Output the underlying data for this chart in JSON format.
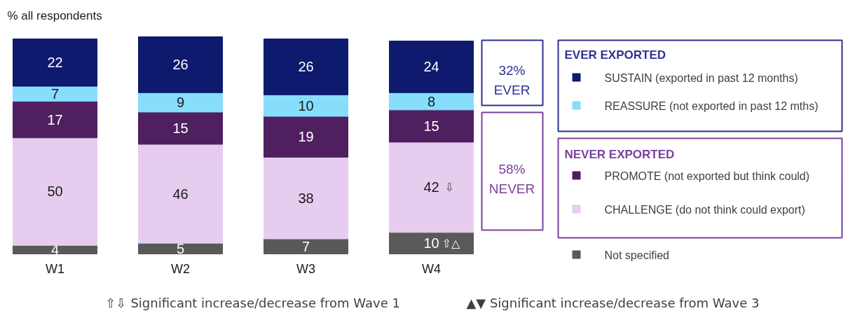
{
  "chart_data": {
    "type": "bar",
    "stacked": true,
    "data_labels": true,
    "legend": "right",
    "ylabel": "% all respondents",
    "categories": [
      "W1",
      "W2",
      "W3",
      "W4"
    ],
    "series": [
      {
        "name": "Not specified",
        "color": "#595959",
        "values": [
          4,
          5,
          7,
          10
        ]
      },
      {
        "name": "CHALLENGE (do not think could export)",
        "color": "#e6cdef",
        "values": [
          50,
          46,
          38,
          42
        ]
      },
      {
        "name": "PROMOTE (not exported but think could)",
        "color": "#4f1f60",
        "values": [
          17,
          15,
          19,
          15
        ]
      },
      {
        "name": "REASSURE (not exported in past 12 mths)",
        "color": "#87ddfc",
        "values": [
          7,
          9,
          10,
          8
        ]
      },
      {
        "name": "SUSTAIN (exported in past 12 months)",
        "color": "#0d1a6e",
        "values": [
          22,
          26,
          26,
          24
        ]
      }
    ],
    "annotations": [
      "EVER EXPORTED",
      "NEVER EXPORTED",
      "32%\nEVER",
      "58%\nNEVER",
      "⇩",
      "⇧△",
      "⇧⇩ Significant increase/decrease from Wave 1",
      "▲▼ Significant increase/decrease from Wave 3"
    ]
  }
}
